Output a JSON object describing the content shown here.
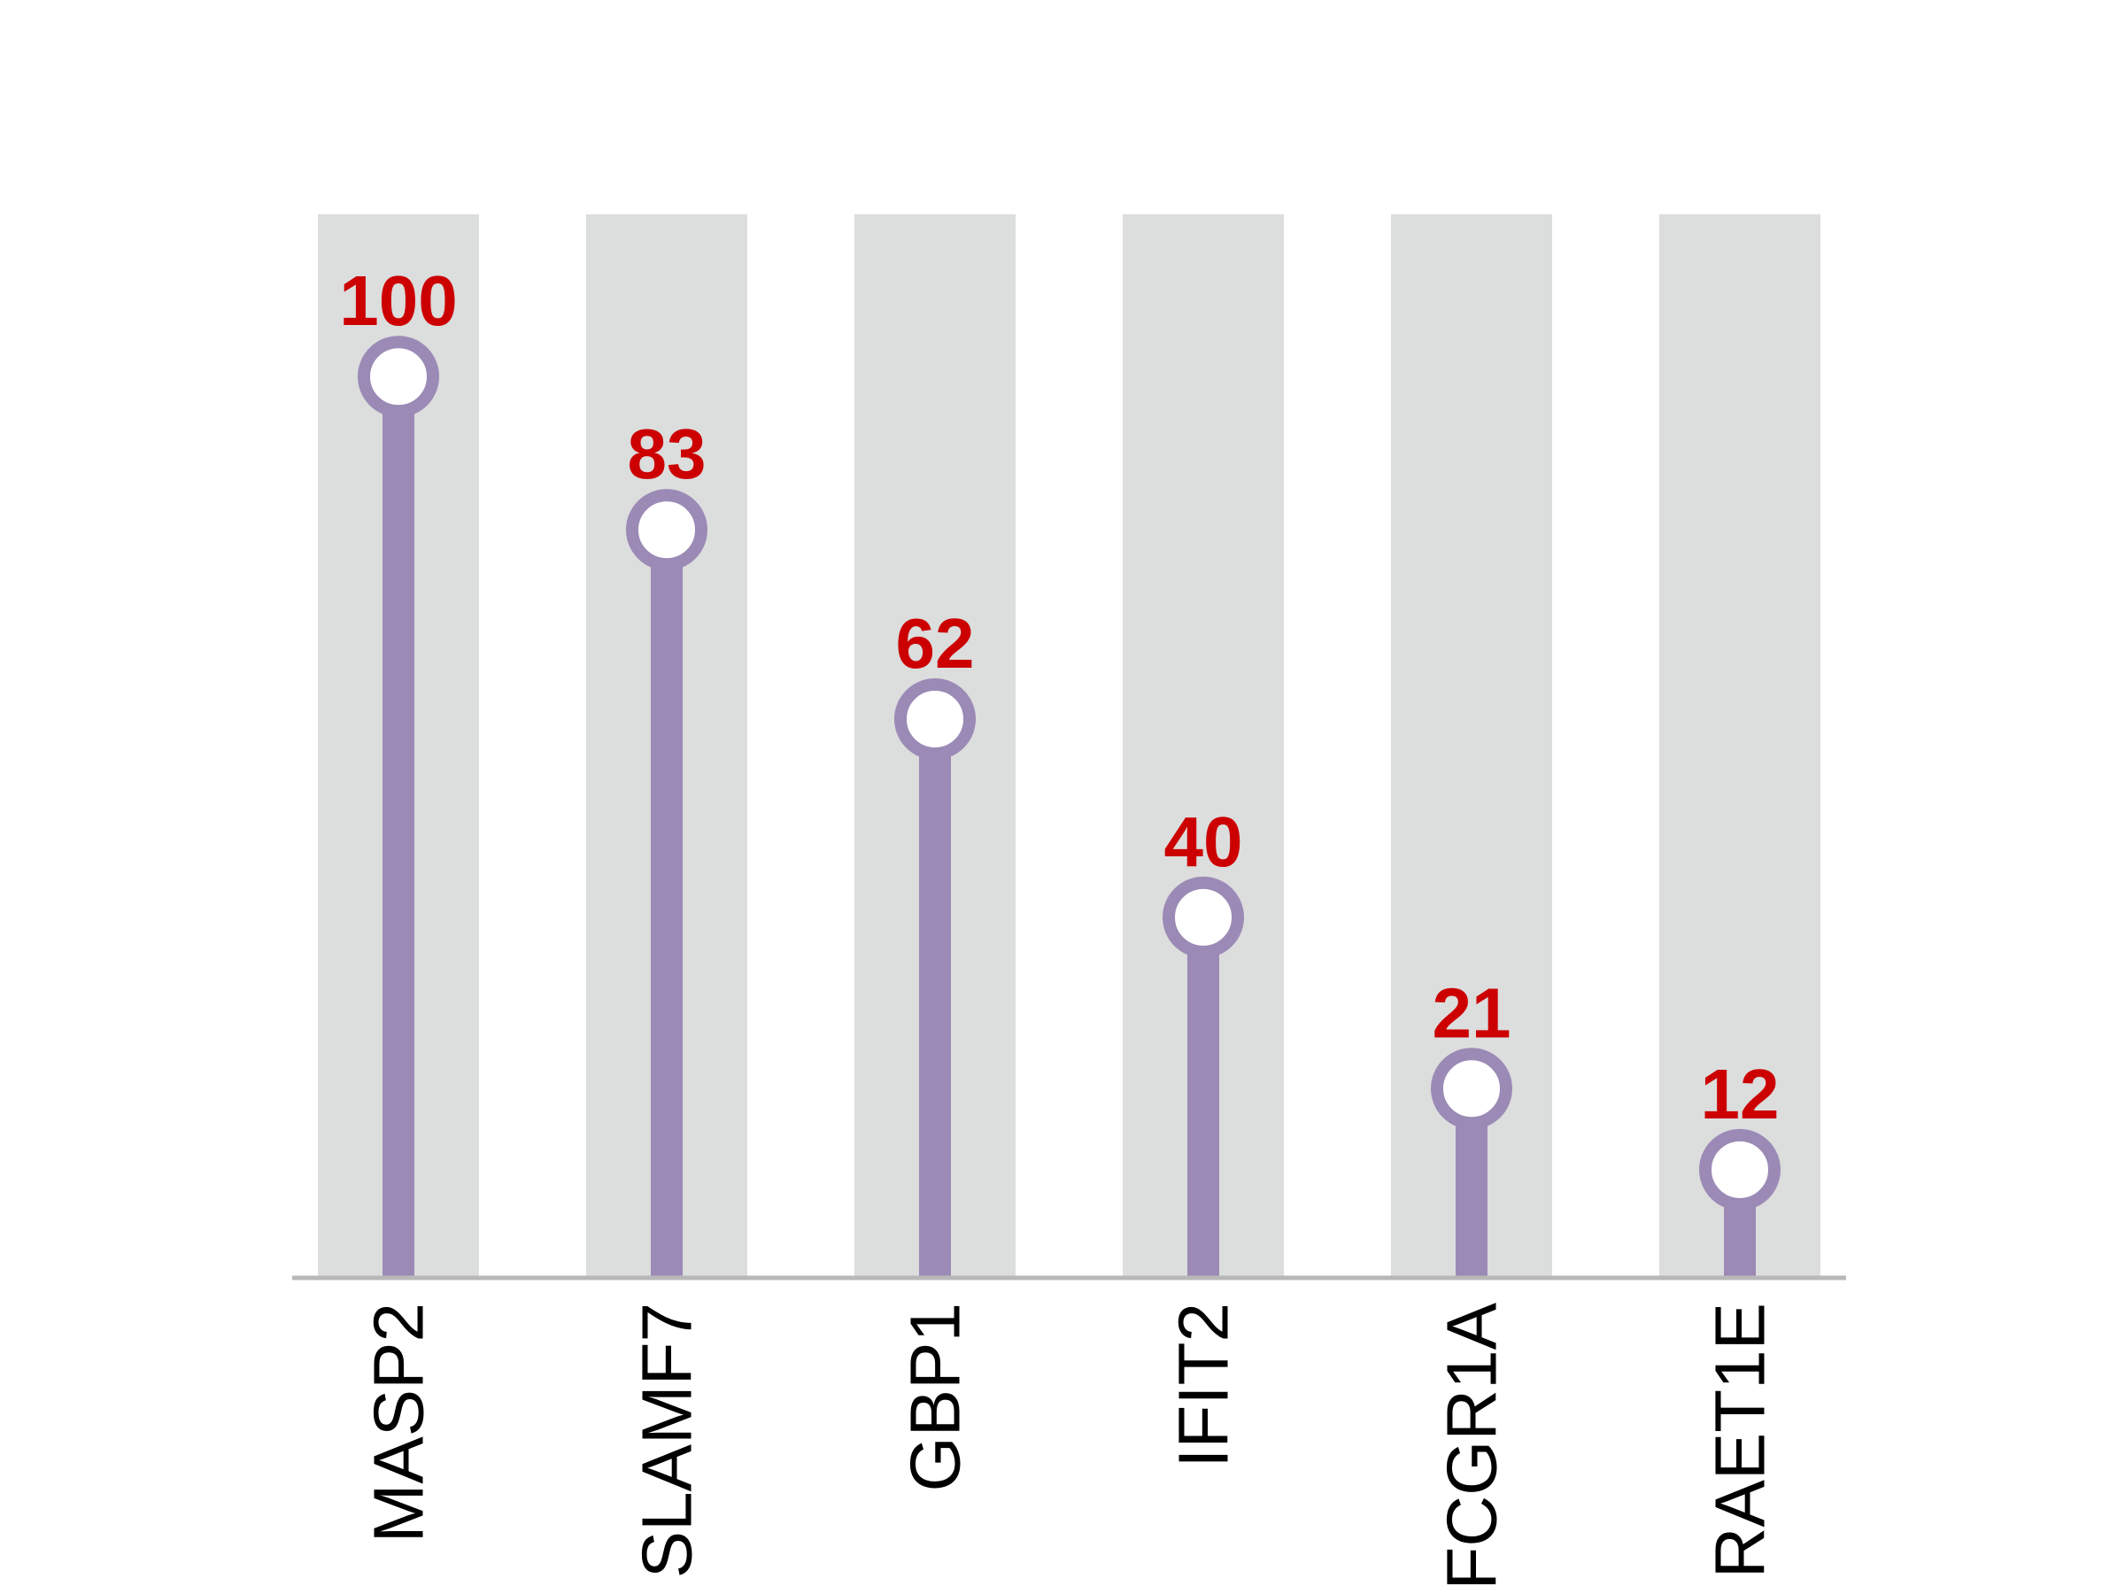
{
  "chart_data": {
    "type": "lollipop",
    "categories": [
      "MASP2",
      "SLAMF7",
      "GBP1",
      "IFIT2",
      "FCGR1A",
      "RAET1E"
    ],
    "values": [
      100,
      83,
      62,
      40,
      21,
      12
    ],
    "title": "",
    "xlabel": "",
    "ylabel": "",
    "ylim": [
      0,
      118
    ],
    "grid": false,
    "legend": "none",
    "colors": {
      "stem": "#9b8ab5",
      "marker_fill": "#ffffff",
      "value_label": "#cc0000",
      "background_band": "#dcdddd",
      "axis": "#b8b8b8"
    }
  }
}
